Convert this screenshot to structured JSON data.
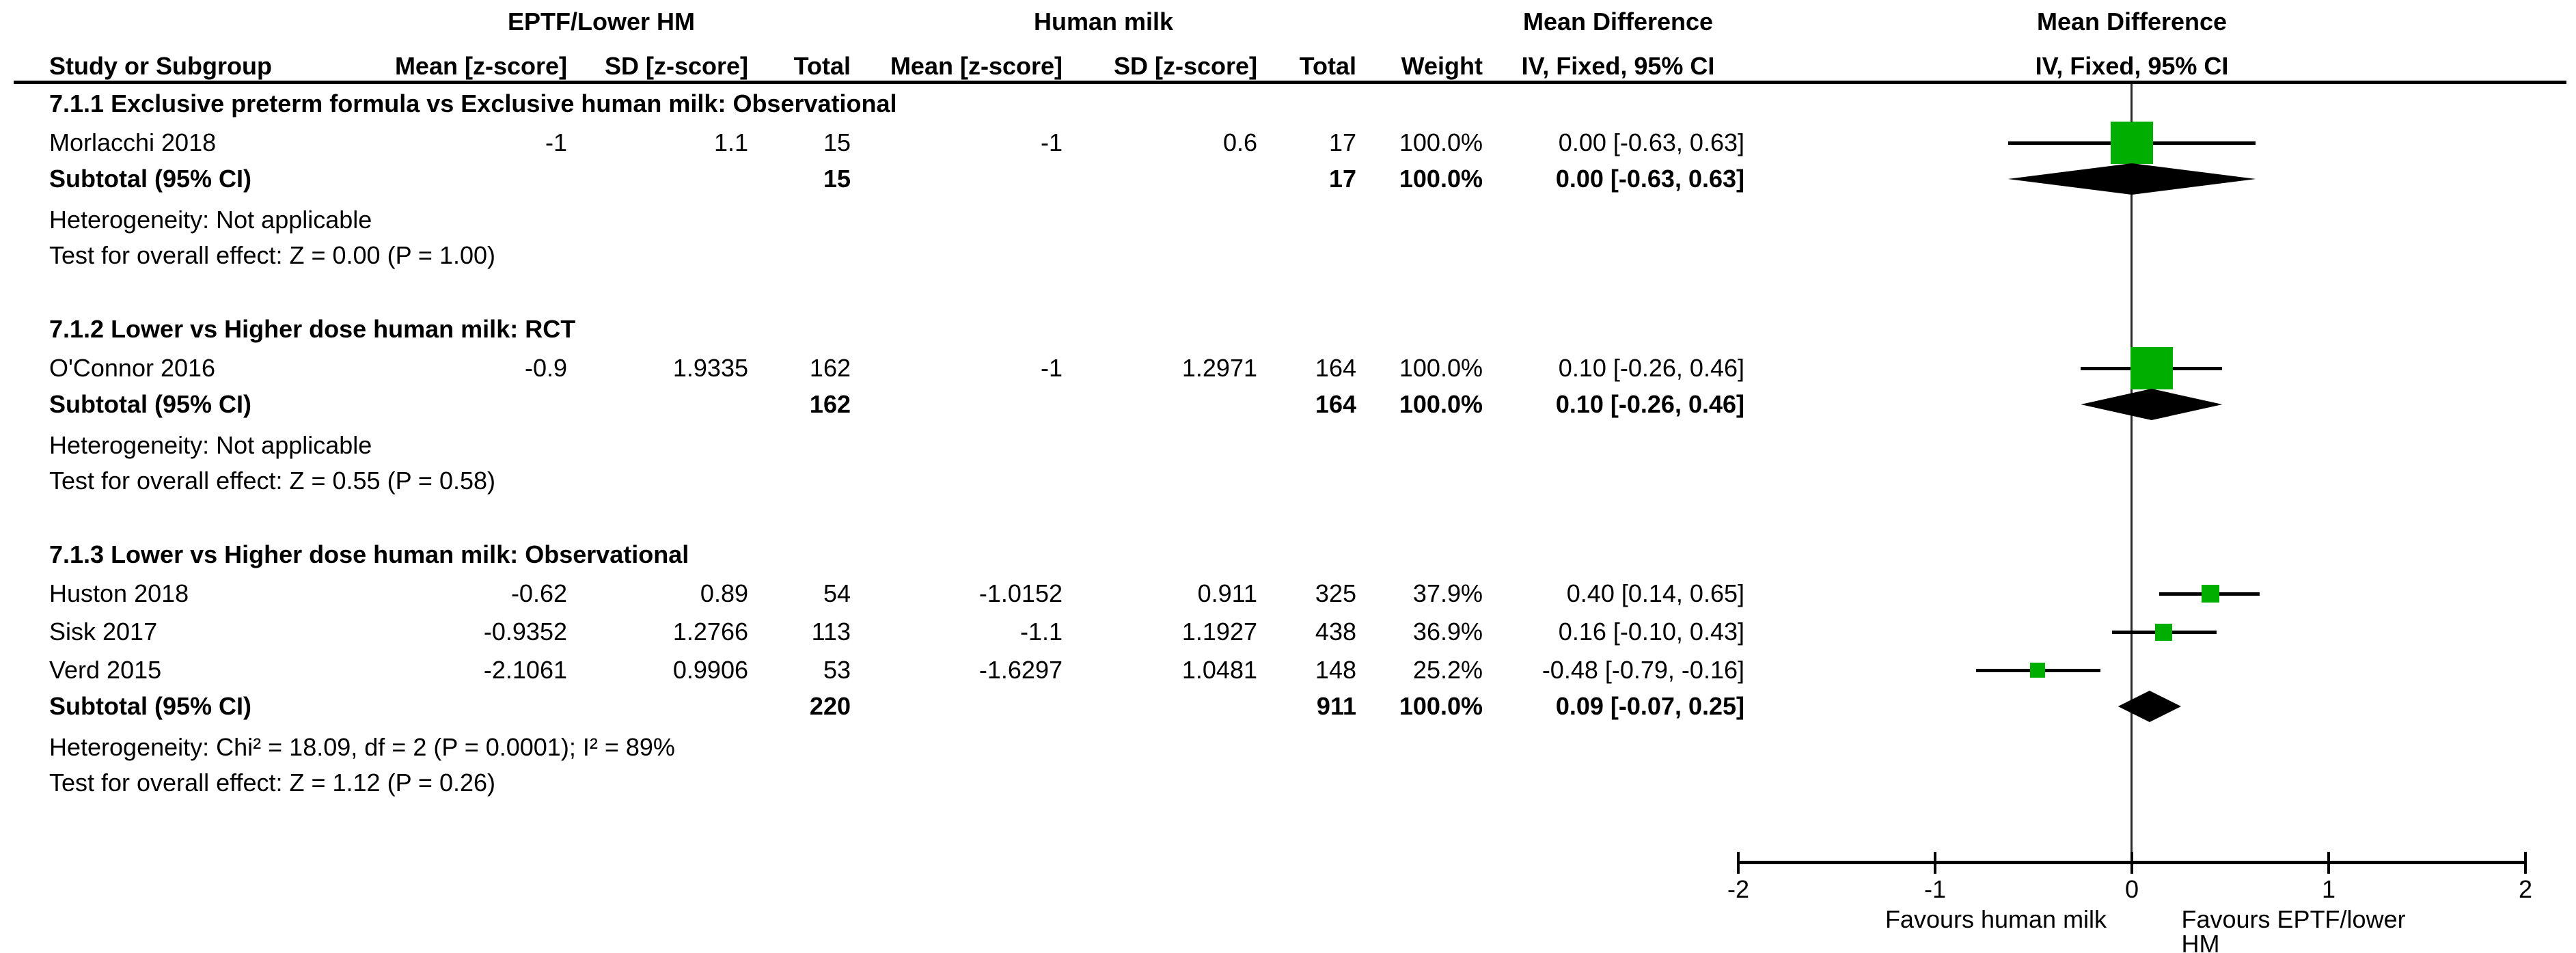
{
  "chart_data": {
    "type": "forest_plot",
    "title": "Mean Difference forest plot",
    "effect_label": "Mean Difference",
    "method_label": "IV, Fixed, 95% CI",
    "group_headers": {
      "experimental": "EPTF/Lower HM",
      "control": "Human milk",
      "md_text_col": "Mean Difference",
      "md_plot_col": "Mean Difference"
    },
    "column_headers": {
      "study": "Study or Subgroup",
      "mean1": "Mean [z-score]",
      "sd1": "SD [z-score]",
      "total1": "Total",
      "mean2": "Mean [z-score]",
      "sd2": "SD [z-score]",
      "total2": "Total",
      "weight": "Weight",
      "ci_text": "IV, Fixed, 95% CI",
      "ci_plot": "IV, Fixed, 95% CI"
    },
    "marker_color": "#00ae00",
    "diamond_color": "#000000",
    "subgroups": [
      {
        "title": "7.1.1 Exclusive preterm formula vs Exclusive human milk: Observational",
        "studies": [
          {
            "name": "Morlacchi 2018",
            "mean1": "-1",
            "sd1": "1.1",
            "total1": "15",
            "mean2": "-1",
            "sd2": "0.6",
            "total2": "17",
            "weight": "100.0%",
            "ci_text": "0.00 [-0.63, 0.63]",
            "md": 0.0,
            "lo": -0.63,
            "hi": 0.63,
            "size": 62
          }
        ],
        "subtotal": {
          "label": "Subtotal (95% CI)",
          "total1": "15",
          "total2": "17",
          "weight": "100.0%",
          "ci_text": "0.00 [-0.63, 0.63]",
          "md": 0.0,
          "lo": -0.63,
          "hi": 0.63
        },
        "heterogeneity": "Heterogeneity: Not applicable",
        "test": "Test for overall effect: Z = 0.00 (P = 1.00)"
      },
      {
        "title": "7.1.2 Lower vs Higher dose human milk: RCT",
        "studies": [
          {
            "name": "O'Connor 2016",
            "mean1": "-0.9",
            "sd1": "1.9335",
            "total1": "162",
            "mean2": "-1",
            "sd2": "1.2971",
            "total2": "164",
            "weight": "100.0%",
            "ci_text": "0.10 [-0.26, 0.46]",
            "md": 0.1,
            "lo": -0.26,
            "hi": 0.46,
            "size": 62
          }
        ],
        "subtotal": {
          "label": "Subtotal (95% CI)",
          "total1": "162",
          "total2": "164",
          "weight": "100.0%",
          "ci_text": "0.10 [-0.26, 0.46]",
          "md": 0.1,
          "lo": -0.26,
          "hi": 0.46
        },
        "heterogeneity": "Heterogeneity: Not applicable",
        "test": "Test for overall effect: Z = 0.55 (P = 0.58)"
      },
      {
        "title": "7.1.3 Lower vs Higher dose human milk: Observational",
        "studies": [
          {
            "name": "Huston 2018",
            "mean1": "-0.62",
            "sd1": "0.89",
            "total1": "54",
            "mean2": "-1.0152",
            "sd2": "0.911",
            "total2": "325",
            "weight": "37.9%",
            "ci_text": "0.40 [0.14, 0.65]",
            "md": 0.4,
            "lo": 0.14,
            "hi": 0.65,
            "size": 26
          },
          {
            "name": "Sisk 2017",
            "mean1": "-0.9352",
            "sd1": "1.2766",
            "total1": "113",
            "mean2": "-1.1",
            "sd2": "1.1927",
            "total2": "438",
            "weight": "36.9%",
            "ci_text": "0.16 [-0.10, 0.43]",
            "md": 0.16,
            "lo": -0.1,
            "hi": 0.43,
            "size": 25
          },
          {
            "name": "Verd 2015",
            "mean1": "-2.1061",
            "sd1": "0.9906",
            "total1": "53",
            "mean2": "-1.6297",
            "sd2": "1.0481",
            "total2": "148",
            "weight": "25.2%",
            "ci_text": "-0.48 [-0.79, -0.16]",
            "md": -0.48,
            "lo": -0.79,
            "hi": -0.16,
            "size": 22
          }
        ],
        "subtotal": {
          "label": "Subtotal (95% CI)",
          "total1": "220",
          "total2": "911",
          "weight": "100.0%",
          "ci_text": "0.09 [-0.07, 0.25]",
          "md": 0.09,
          "lo": -0.07,
          "hi": 0.25
        },
        "heterogeneity": "Heterogeneity: Chi² = 18.09, df = 2 (P = 0.0001); I² = 89%",
        "test": "Test for overall effect: Z = 1.12 (P = 0.26)"
      }
    ],
    "axis": {
      "min": -2,
      "max": 2,
      "ticks": [
        "-2",
        "-1",
        "0",
        "1",
        "2"
      ],
      "tick_values": [
        -2,
        -1,
        0,
        1,
        2
      ],
      "favours_left": "Favours human milk",
      "favours_right": "Favours EPTF/lower HM"
    }
  }
}
